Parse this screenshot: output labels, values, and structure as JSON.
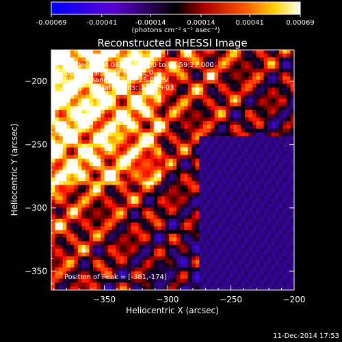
{
  "colorbar": {
    "ticks": [
      "-0.00069",
      "-0.00041",
      "-0.00014",
      "0.00014",
      "0.00041",
      "0.00069"
    ],
    "tick_values": [
      -0.00069,
      -0.00041,
      -0.00014,
      0.00014,
      0.00041,
      0.00069
    ],
    "unit": "(photons cm⁻² s⁻¹ asec⁻²)",
    "range": [
      -0.00069,
      0.00069
    ]
  },
  "chart_data": {
    "type": "heatmap",
    "title": "Reconstructed RHESSI Image",
    "xlabel": "Heliocentric X (arcsec)",
    "ylabel": "Heliocentric Y (arcsec)",
    "xlim": [
      -392,
      -200
    ],
    "ylim": [
      -365,
      -175
    ],
    "xticks": [
      -350,
      -300,
      -250,
      -200
    ],
    "xtick_labels": [
      "−350",
      "−300",
      "−250",
      "−200"
    ],
    "yticks": [
      -200,
      -250,
      -300,
      -350
    ],
    "ytick_labels": [
      "−200",
      "−250",
      "−300",
      "−350"
    ],
    "annotations": [
      "10-Dec-2014 06:55:24.000 to 06:59:22.000",
      "Detectors: 3F 6F 9F, Att_0",
      "Energy Range: 12.0 - 25.0 keV",
      "Clean     Total counts: 1.85E+03"
    ],
    "peak_label": "Position of Peak = [-381,-174]",
    "peak_position": [
      -381,
      -174
    ],
    "grid": false,
    "colors": {
      "background": "#000000",
      "low": "#1a00ff",
      "mid_low": "#3a1070",
      "zero": "#000000",
      "mid_high": "#c01010",
      "high": "#ff9a00",
      "max": "#ffffff"
    }
  },
  "footer": {
    "timestamp": "11-Dec-2014 17:53"
  }
}
